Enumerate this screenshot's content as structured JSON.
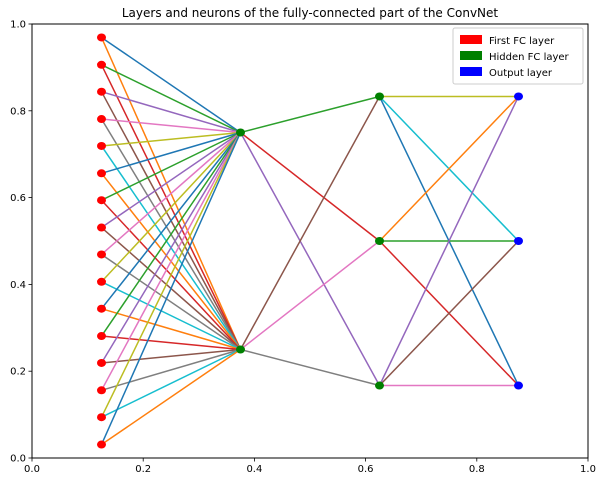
{
  "chart_data": {
    "type": "scatter",
    "title": "Layers and neurons of the fully-connected part of the ConvNet",
    "xlabel": "",
    "ylabel": "",
    "xlim": [
      0,
      1
    ],
    "ylim": [
      0,
      1
    ],
    "x_ticks": [
      "0.0",
      "0.2",
      "0.4",
      "0.6",
      "0.8",
      "1.0"
    ],
    "y_ticks": [
      "0.0",
      "0.2",
      "0.4",
      "0.6",
      "0.8",
      "1.0"
    ],
    "grid": false,
    "legend_position": "top-right",
    "series": [
      {
        "name": "First FC layer",
        "color": "#ff0000",
        "x": 0.125,
        "y": [
          0.969,
          0.906,
          0.844,
          0.781,
          0.719,
          0.656,
          0.594,
          0.531,
          0.469,
          0.406,
          0.344,
          0.281,
          0.219,
          0.156,
          0.094,
          0.031
        ]
      },
      {
        "name": "Hidden FC layer",
        "color": "#008000",
        "x": 0.375,
        "y": [
          0.75,
          0.25
        ]
      },
      {
        "name": "Hidden FC layer",
        "color": "#008000",
        "x": 0.625,
        "y": [
          0.833,
          0.5,
          0.167
        ]
      },
      {
        "name": "Output layer",
        "color": "#0000ff",
        "x": 0.875,
        "y": [
          0.833,
          0.5,
          0.167
        ]
      }
    ],
    "legend": [
      {
        "label": "First FC layer",
        "color": "#ff0000"
      },
      {
        "label": "Hidden FC layer",
        "color": "#008000"
      },
      {
        "label": "Output layer",
        "color": "#0000ff"
      }
    ],
    "edge_colors": [
      "#1f77b4",
      "#ff7f0e",
      "#2ca02c",
      "#d62728",
      "#9467bd",
      "#8c564b",
      "#e377c2",
      "#7f7f7f",
      "#bcbd22",
      "#17becf"
    ]
  }
}
